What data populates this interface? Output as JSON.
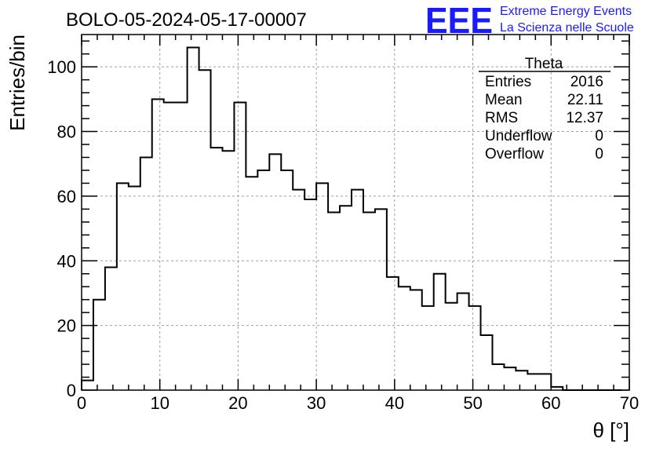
{
  "header": {
    "run_title": "BOLO-05-2024-05-17-00007",
    "logo_mark": "EEE",
    "logo_line1": "Extreme Energy Events",
    "logo_line2": "La Scienza nelle Scuole"
  },
  "stats_box": {
    "title": "Theta",
    "rows": [
      {
        "label": "Entries",
        "value": "2016"
      },
      {
        "label": "Mean",
        "value": "22.11"
      },
      {
        "label": "RMS",
        "value": "12.37"
      },
      {
        "label": "Underflow",
        "value": "0"
      },
      {
        "label": "Overflow",
        "value": "0"
      }
    ]
  },
  "chart_data": {
    "type": "bar",
    "histogram": true,
    "title": "BOLO-05-2024-05-17-00007",
    "xlabel": "θ [°]",
    "ylabel": "Entries/bin",
    "xlim": [
      0,
      70
    ],
    "ylim": [
      0,
      110
    ],
    "grid": true,
    "bin_width": 1.5,
    "bin_start": 0,
    "values": [
      3,
      28,
      38,
      64,
      63,
      72,
      90,
      89,
      89,
      106,
      99,
      75,
      74,
      89,
      66,
      68,
      73,
      68,
      62,
      59,
      64,
      55,
      57,
      62,
      55,
      56,
      35,
      32,
      31,
      26,
      36,
      27,
      30,
      26,
      17,
      8,
      7,
      6,
      5,
      5,
      1,
      0,
      0,
      0,
      0,
      0
    ],
    "x_ticks": [
      "0",
      "10",
      "20",
      "30",
      "40",
      "50",
      "60",
      "70"
    ],
    "y_ticks": [
      "0",
      "20",
      "40",
      "60",
      "80",
      "100"
    ],
    "line_color": "#000000",
    "grid_color": "#a0a0a0"
  }
}
